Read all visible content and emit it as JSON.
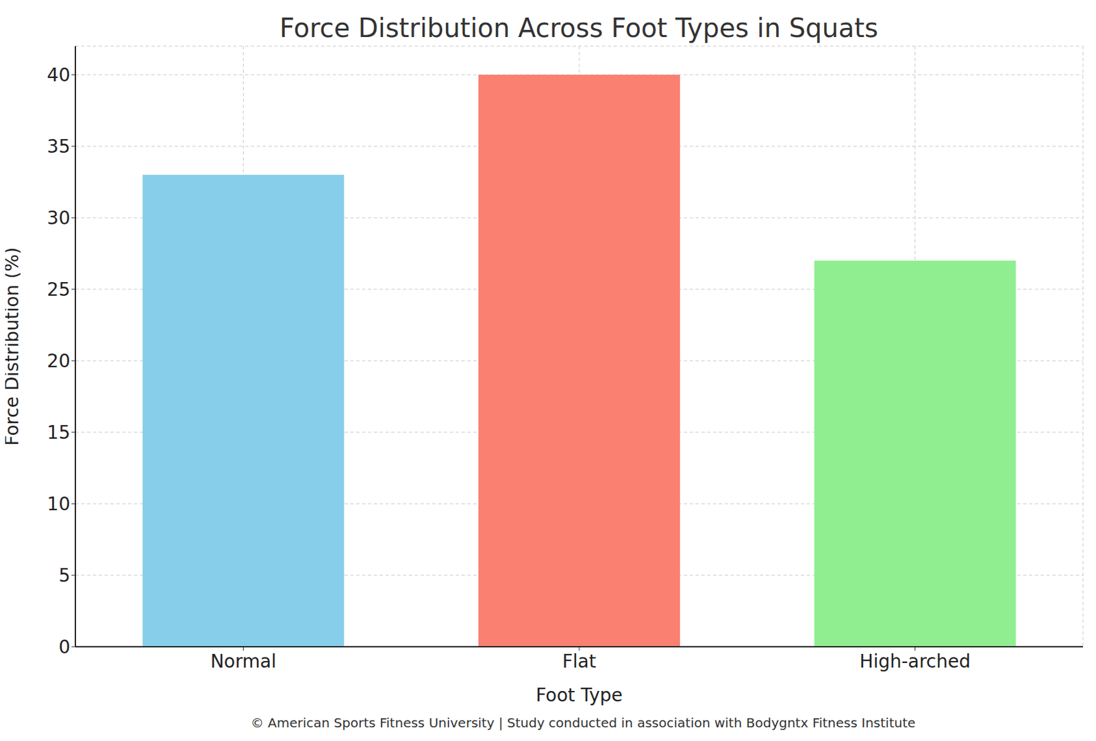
{
  "chart_data": {
    "type": "bar",
    "title": "Force Distribution Across Foot Types in Squats",
    "x_label": "Foot Type",
    "y_label": "Force Distribution (%)",
    "categories": [
      "Normal",
      "Flat",
      "High-arched"
    ],
    "values": [
      33,
      40,
      27
    ],
    "colors": [
      "#87ceeb",
      "#fa8072",
      "#90ee90"
    ],
    "ylim": [
      0,
      42
    ],
    "yticks": [
      0,
      5,
      10,
      15,
      20,
      25,
      30,
      35,
      40
    ],
    "grid": true,
    "annotations": [
      "© American Sports Fitness University | Study conducted in association with Bodygntx Fitness Institute"
    ]
  }
}
